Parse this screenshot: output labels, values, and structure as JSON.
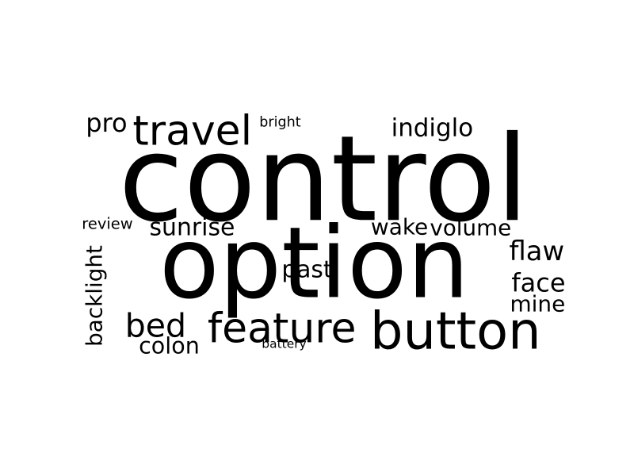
{
  "wordcloud": {
    "text_color": "#000000",
    "background_color": "#ffffff",
    "words": [
      {
        "id": "control",
        "text": "control"
      },
      {
        "id": "option",
        "text": "option"
      },
      {
        "id": "button",
        "text": "button"
      },
      {
        "id": "feature",
        "text": "feature"
      },
      {
        "id": "travel",
        "text": "travel"
      },
      {
        "id": "bed",
        "text": "bed"
      },
      {
        "id": "indiglo",
        "text": "indiglo"
      },
      {
        "id": "sunrise",
        "text": "sunrise"
      },
      {
        "id": "volume",
        "text": "volume"
      },
      {
        "id": "backlight",
        "text": "backlight"
      },
      {
        "id": "past",
        "text": "past"
      },
      {
        "id": "wake",
        "text": "wake"
      },
      {
        "id": "flaw",
        "text": "flaw"
      },
      {
        "id": "face",
        "text": "face"
      },
      {
        "id": "mine",
        "text": "mine"
      },
      {
        "id": "colon",
        "text": "colon"
      },
      {
        "id": "pro",
        "text": "pro"
      },
      {
        "id": "bright",
        "text": "bright"
      },
      {
        "id": "review",
        "text": "review"
      },
      {
        "id": "battery",
        "text": "battery"
      }
    ]
  }
}
